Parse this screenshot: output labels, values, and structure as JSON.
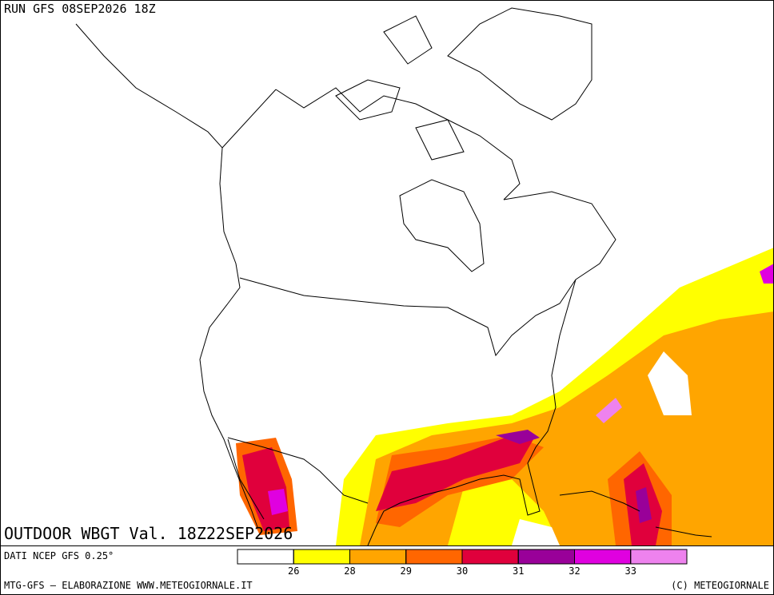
{
  "header": {
    "run": "RUN GFS 08SEP2026 18Z"
  },
  "map": {
    "title": "OUTDOOR WBGT Val. 18Z22SEP2026"
  },
  "footer": {
    "source": "DATI NCEP GFS 0.25°",
    "credit": "MTG-GFS — ELABORAZIONE WWW.METEOGIORNALE.IT",
    "copyright": "(C) METEOGIORNALE"
  },
  "legend": {
    "colors": [
      "#ffffff",
      "#ffff00",
      "#ffa500",
      "#ff6600",
      "#e0003c",
      "#990099",
      "#e000e0",
      "#ee82ee"
    ],
    "ticks": [
      26,
      28,
      29,
      30,
      31,
      32,
      33
    ]
  }
}
